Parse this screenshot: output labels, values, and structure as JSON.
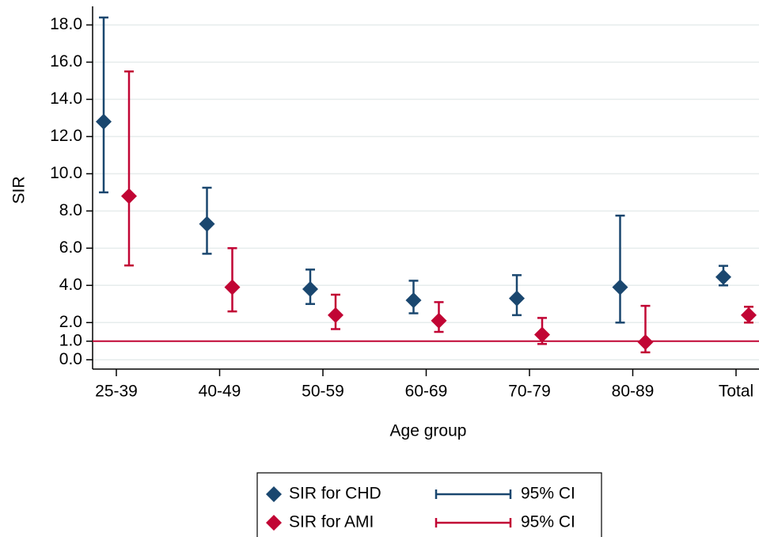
{
  "chart_data": {
    "type": "errorbar",
    "x_label": "Age group",
    "y_label": "SIR",
    "categories": [
      "25-39",
      "40-49",
      "50-59",
      "60-69",
      "70-79",
      "80-89",
      "Total"
    ],
    "series": [
      {
        "name": "SIR for CHD",
        "ci_name": "95% CI",
        "color": "#1a476f",
        "values": [
          12.8,
          7.3,
          3.8,
          3.2,
          3.3,
          3.9,
          4.45
        ],
        "lower": [
          9.0,
          5.7,
          3.0,
          2.5,
          2.4,
          2.0,
          4.0
        ],
        "upper": [
          18.4,
          9.25,
          4.85,
          4.25,
          4.55,
          7.75,
          5.05
        ]
      },
      {
        "name": "SIR for AMI",
        "ci_name": "95% CI",
        "color": "#c10534",
        "values": [
          8.8,
          3.9,
          2.4,
          2.1,
          1.35,
          0.95,
          2.4
        ],
        "lower": [
          5.07,
          2.6,
          1.65,
          1.5,
          0.85,
          0.4,
          2.0
        ],
        "upper": [
          15.5,
          6.0,
          3.5,
          3.1,
          2.25,
          2.9,
          2.85
        ]
      }
    ],
    "ylim": [
      -0.5,
      19
    ],
    "yticks": [
      {
        "value": 0,
        "label": "0.0"
      },
      {
        "value": 1,
        "label": "1.0"
      },
      {
        "value": 2,
        "label": "2.0"
      },
      {
        "value": 4,
        "label": "4.0"
      },
      {
        "value": 6,
        "label": "6.0"
      },
      {
        "value": 8,
        "label": "8.0"
      },
      {
        "value": 10,
        "label": "10.0"
      },
      {
        "value": 12,
        "label": "12.0"
      },
      {
        "value": 14,
        "label": "14.0"
      },
      {
        "value": 16,
        "label": "16.0"
      },
      {
        "value": 18,
        "label": "18.0"
      }
    ],
    "grid": true,
    "reference_line": {
      "value": 1,
      "color": "#c10534"
    }
  }
}
